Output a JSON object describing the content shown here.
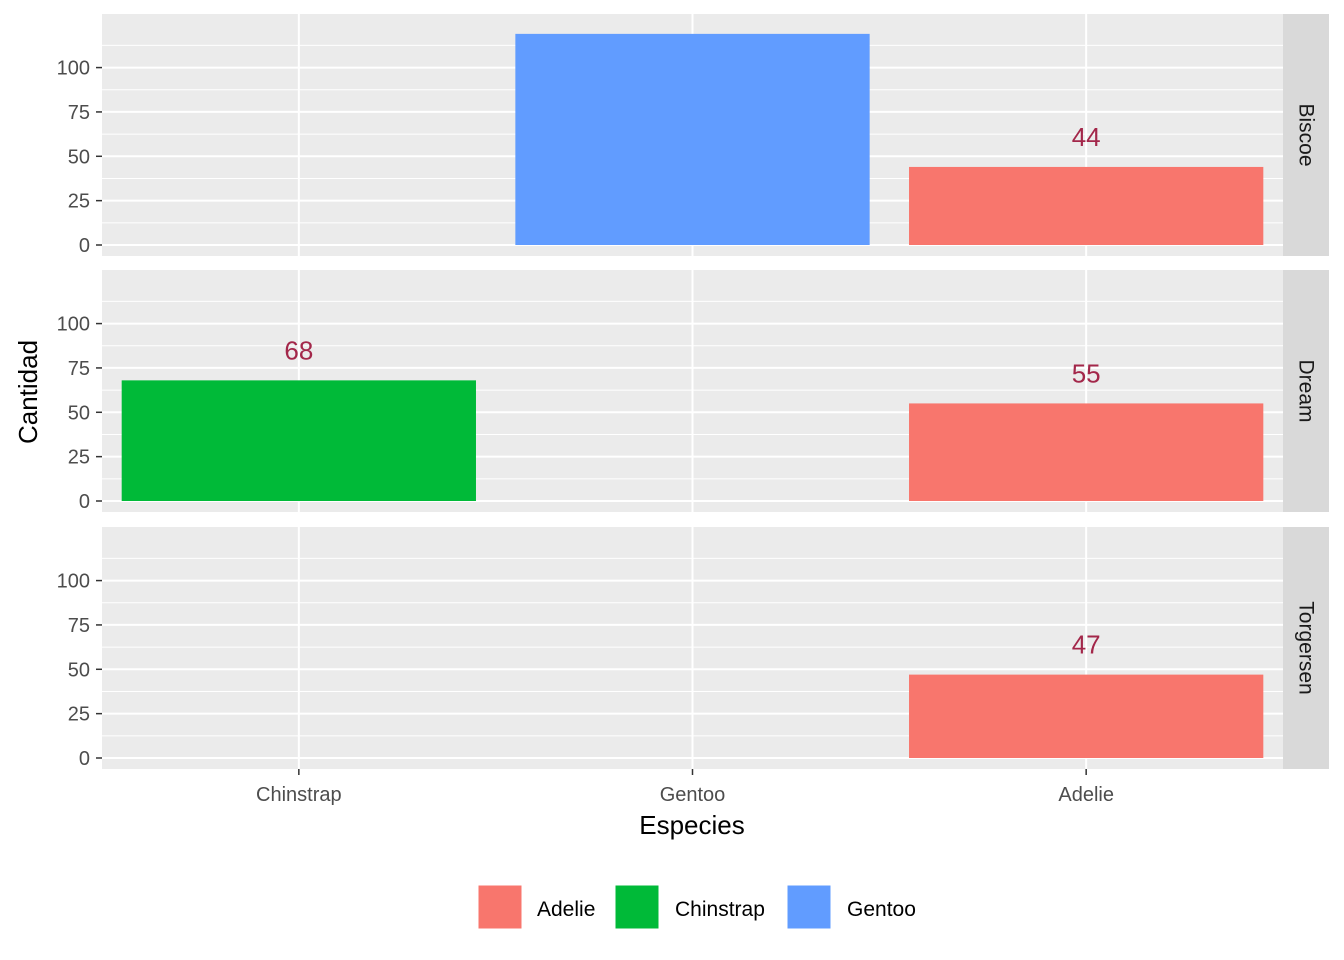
{
  "chart_data": {
    "type": "bar",
    "xlabel": "Especies",
    "ylabel": "Cantidad",
    "categories": [
      "Chinstrap",
      "Gentoo",
      "Adelie"
    ],
    "ylim": [
      0,
      124
    ],
    "yticks": [
      0,
      25,
      50,
      75,
      100
    ],
    "grid": true,
    "legend_position": "bottom",
    "label_color": "#A3274A",
    "panel_bg": "#EBEBEB",
    "strip_bg": "#D9D9D9",
    "facets": [
      {
        "label": "Biscoe",
        "bars": [
          {
            "category": "Gentoo",
            "value": 119,
            "label": ""
          },
          {
            "category": "Adelie",
            "value": 44,
            "label": "44"
          }
        ]
      },
      {
        "label": "Dream",
        "bars": [
          {
            "category": "Chinstrap",
            "value": 68,
            "label": "68"
          },
          {
            "category": "Adelie",
            "value": 55,
            "label": "55"
          }
        ]
      },
      {
        "label": "Torgersen",
        "bars": [
          {
            "category": "Adelie",
            "value": 47,
            "label": "47"
          }
        ]
      }
    ],
    "legend": [
      {
        "name": "Adelie",
        "color": "#F8766D"
      },
      {
        "name": "Chinstrap",
        "color": "#00BA38"
      },
      {
        "name": "Gentoo",
        "color": "#619CFF"
      }
    ]
  }
}
